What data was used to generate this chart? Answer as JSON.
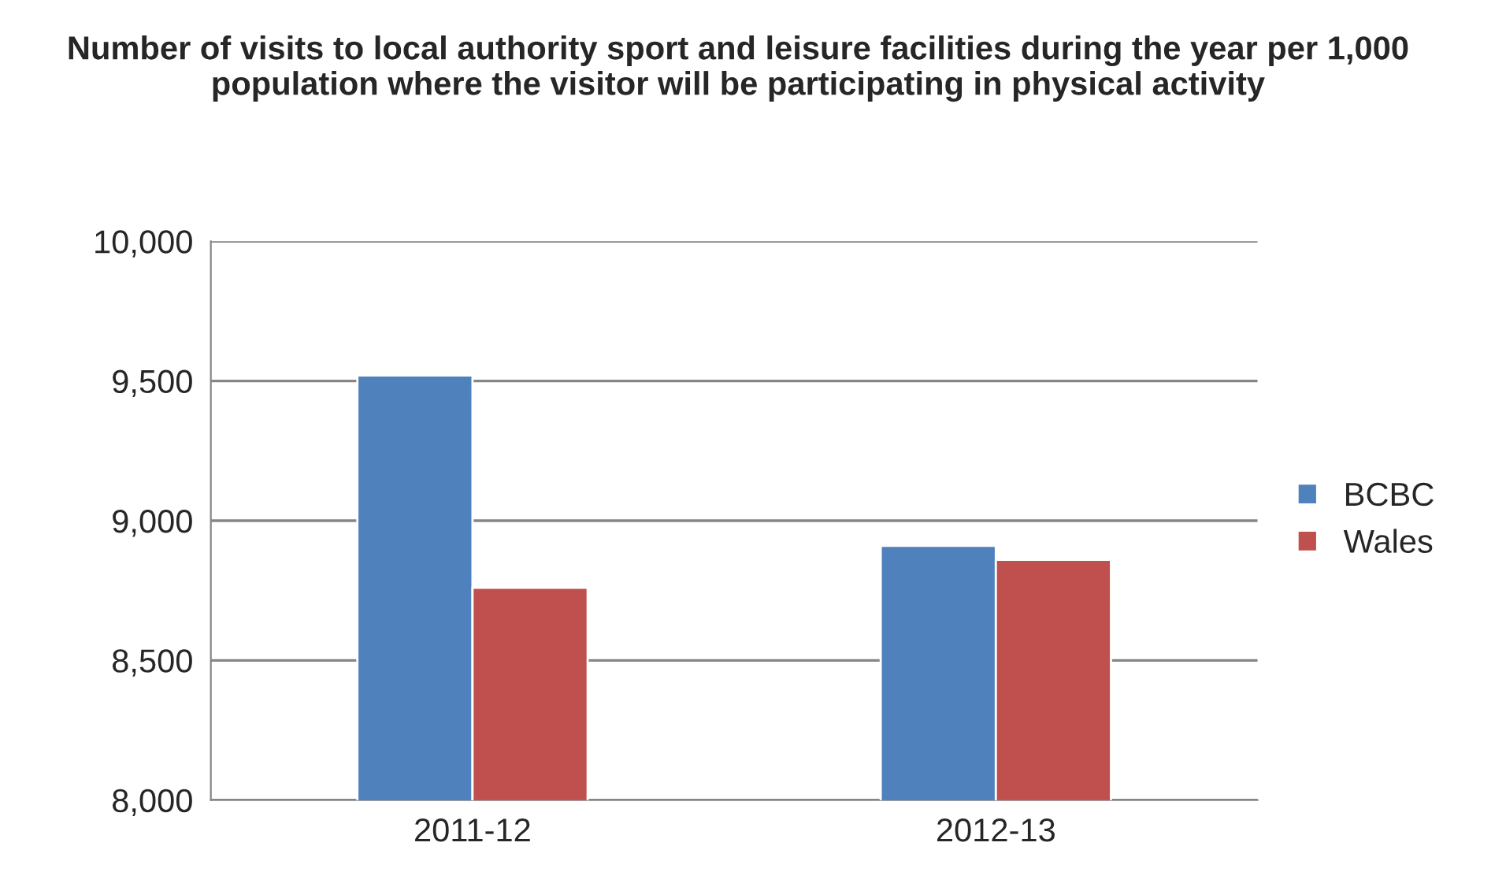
{
  "chart_data": {
    "type": "bar",
    "title": "Number of visits to local authority sport and leisure facilities during the year per 1,000 population where the visitor will be participating in physical activity",
    "categories": [
      "2011-12",
      "2012-13"
    ],
    "series": [
      {
        "name": "BCBC",
        "color": "#4f81bd",
        "values": [
          9520,
          8910
        ]
      },
      {
        "name": "Wales",
        "color": "#c0504d",
        "values": [
          8760,
          8860
        ]
      }
    ],
    "ylim": [
      8000,
      10000
    ],
    "yticks": [
      {
        "value": 8000,
        "label": "8,000"
      },
      {
        "value": 8500,
        "label": "8,500"
      },
      {
        "value": 9000,
        "label": "9,000"
      },
      {
        "value": 9500,
        "label": "9,500"
      },
      {
        "value": 10000,
        "label": "10,000"
      }
    ],
    "grid": "y",
    "legend": "right"
  }
}
